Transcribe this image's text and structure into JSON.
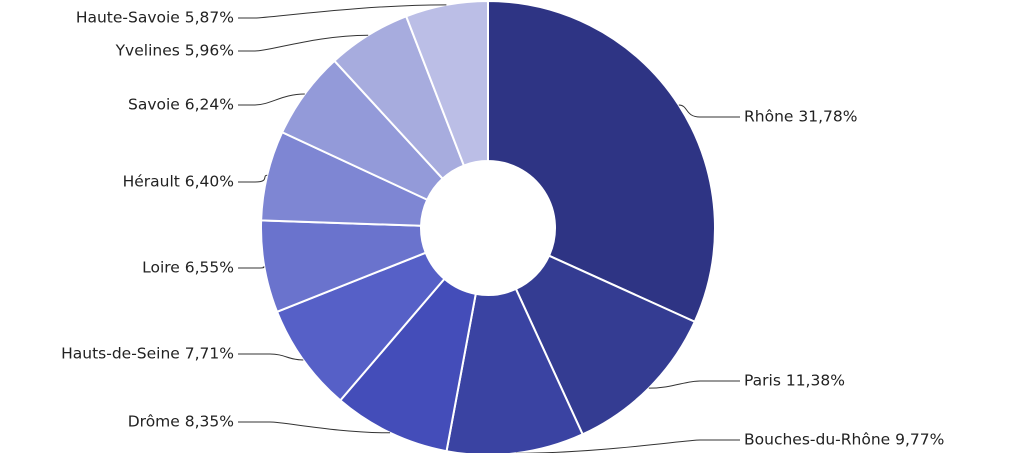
{
  "chart_data": {
    "type": "pie",
    "variant": "donut",
    "title": "",
    "series": [
      {
        "values": [
          31.78,
          11.38,
          9.77,
          8.35,
          7.71,
          6.55,
          6.4,
          6.24,
          5.96,
          5.87
        ],
        "labels": [
          "Rhône 31,78%",
          "Paris 11,38%",
          "Bouches-du-Rhône 9,77%",
          "Drôme 8,35%",
          "Hauts-de-Seine 7,71%",
          "Loire 6,55%",
          "Hérault 6,40%",
          "Savoie 6,24%",
          "Yvelines 5,96%",
          "Haute-Savoie 5,87%"
        ]
      }
    ],
    "categories": [
      "Rhône",
      "Paris",
      "Bouches-du-Rhône",
      "Drôme",
      "Hauts-de-Seine",
      "Loire",
      "Hérault",
      "Savoie",
      "Yvelines",
      "Haute-Savoie"
    ],
    "colors": [
      "#2e3484",
      "#343c92",
      "#3a43a2",
      "#444db9",
      "#5660c7",
      "#6a73cd",
      "#7e86d3",
      "#939ad9",
      "#a7acde",
      "#bbbee6"
    ],
    "legend": "none",
    "start_angle_deg": 0,
    "direction": "clockwise"
  }
}
